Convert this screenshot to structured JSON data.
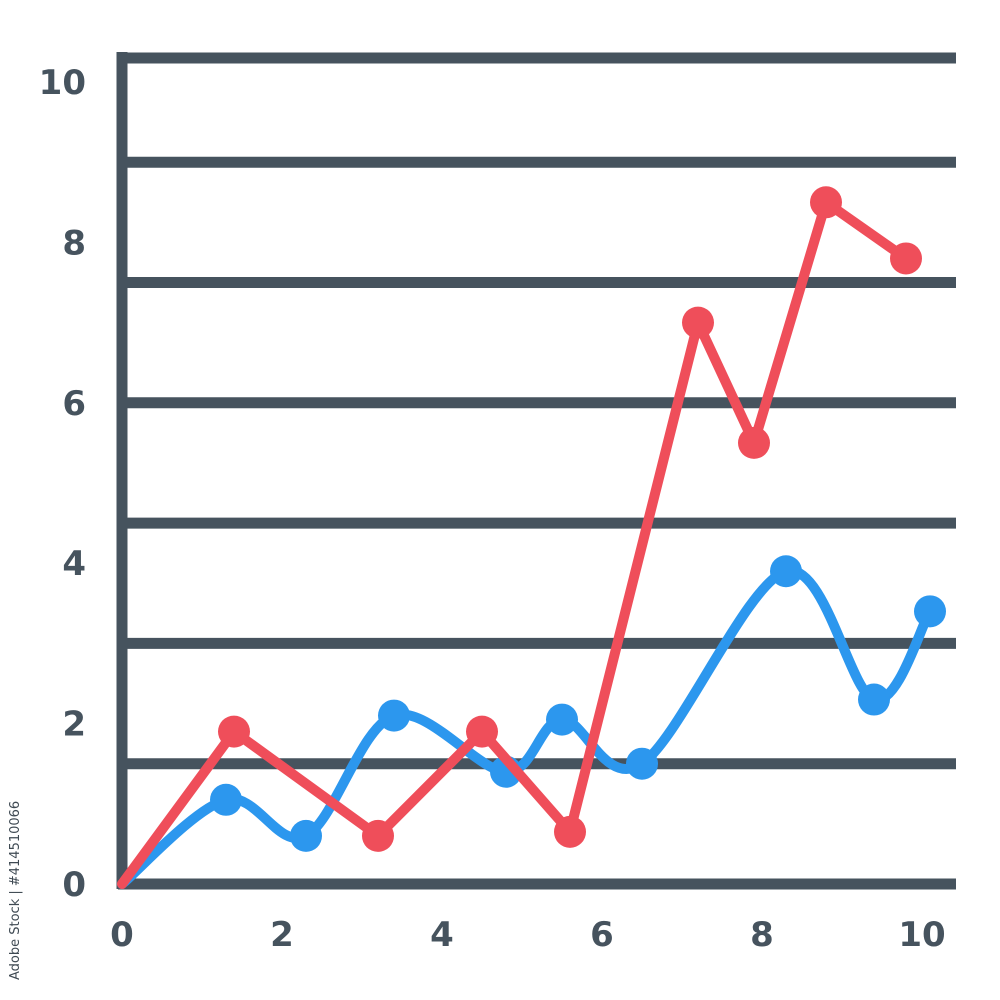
{
  "credit_text": "Adobe Stock | #414510066",
  "colors": {
    "axis": "#46535e",
    "series_red": "#ef4e5a",
    "series_blue": "#2c97ee"
  },
  "chart_data": {
    "type": "line",
    "xlim": [
      0,
      10
    ],
    "ylim": [
      0,
      10
    ],
    "x_ticks": [
      "0",
      "2",
      "4",
      "6",
      "8",
      "10"
    ],
    "y_ticks": [
      "0",
      "2",
      "4",
      "6",
      "8",
      "10"
    ],
    "gridlines_y": [
      0,
      1.5,
      3,
      4.5,
      6,
      7.5,
      9,
      10.5
    ],
    "grid": true,
    "series": [
      {
        "color": "#ef4e5a",
        "smooth": false,
        "points": [
          [
            0.0,
            0.0
          ],
          [
            1.4,
            1.9
          ],
          [
            3.2,
            0.6
          ],
          [
            4.5,
            1.9
          ],
          [
            5.6,
            0.65
          ],
          [
            7.2,
            7.0
          ],
          [
            7.9,
            5.5
          ],
          [
            8.8,
            8.5
          ],
          [
            9.8,
            7.8
          ]
        ]
      },
      {
        "color": "#2c97ee",
        "smooth": true,
        "points": [
          [
            0.0,
            0.0
          ],
          [
            1.3,
            1.05
          ],
          [
            2.3,
            0.6
          ],
          [
            3.4,
            2.1
          ],
          [
            4.8,
            1.4
          ],
          [
            5.5,
            2.05
          ],
          [
            6.5,
            1.5
          ],
          [
            8.3,
            3.9
          ],
          [
            9.4,
            2.3
          ],
          [
            10.1,
            3.4
          ]
        ]
      }
    ]
  }
}
